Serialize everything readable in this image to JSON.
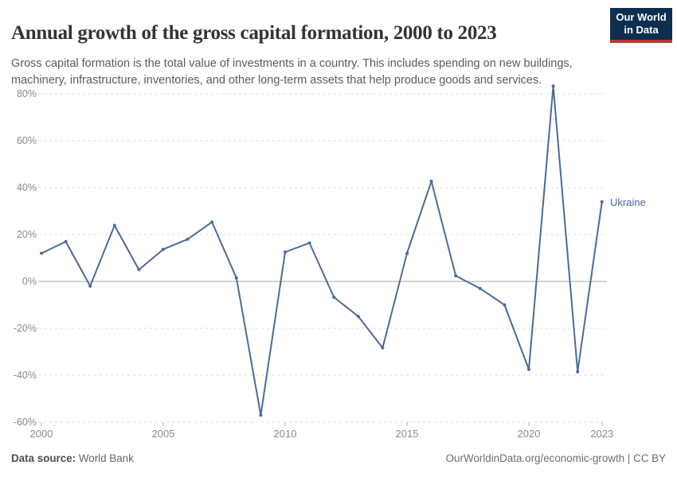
{
  "header": {
    "title": "Annual growth of the gross capital formation, 2000 to 2023",
    "subtitle": "Gross capital formation is the total value of investments in a country. This includes spending on new buildings, machinery, infrastructure, inventories, and other long-term assets that help produce goods and services.",
    "logo": {
      "line1": "Our World",
      "line2": "in Data"
    }
  },
  "chart_data": {
    "type": "line",
    "title": "Annual growth of the gross capital formation, 2000 to 2023",
    "xlabel": "",
    "ylabel": "",
    "x_range": [
      2000,
      2023
    ],
    "y_range": [
      -60,
      80
    ],
    "grid": "horizontal dashed",
    "zero_line": true,
    "legend_position": "end-of-line label",
    "x_ticks": [
      2000,
      2005,
      2010,
      2015,
      2020,
      2023
    ],
    "y_ticks": [
      {
        "value": 80,
        "label": "80%"
      },
      {
        "value": 60,
        "label": "60%"
      },
      {
        "value": 40,
        "label": "40%"
      },
      {
        "value": 20,
        "label": "20%"
      },
      {
        "value": 0,
        "label": "0%"
      },
      {
        "value": -20,
        "label": "-20%"
      },
      {
        "value": -40,
        "label": "-40%"
      },
      {
        "value": -60,
        "label": "-60%"
      }
    ],
    "series": [
      {
        "name": "Ukraine",
        "color": "#4c6a9c",
        "years": [
          2000,
          2001,
          2002,
          2003,
          2004,
          2005,
          2006,
          2007,
          2008,
          2009,
          2010,
          2011,
          2012,
          2013,
          2014,
          2015,
          2016,
          2017,
          2018,
          2019,
          2020,
          2021,
          2022,
          2023
        ],
        "values": [
          12,
          17,
          -2,
          23.9,
          5,
          13.7,
          18,
          25.3,
          1.5,
          -57,
          12.5,
          16.4,
          -6.7,
          -14.9,
          -28.3,
          12,
          42.7,
          2.4,
          -3,
          -10,
          -37.5,
          83.3,
          -38.5,
          34
        ]
      }
    ]
  },
  "footer": {
    "source_label": "Data source:",
    "source_value": "World Bank",
    "credit": "OurWorldinData.org/economic-growth | CC BY"
  },
  "colors": {
    "line": "#4c6a9c",
    "grid": "#dcdcdc",
    "zero_line": "#a3a3a3",
    "tick_mark": "#b5b5b5",
    "axis_text": "#8a8a8a",
    "logo_bg": "#0d2e4f",
    "logo_red": "#c5342e"
  }
}
